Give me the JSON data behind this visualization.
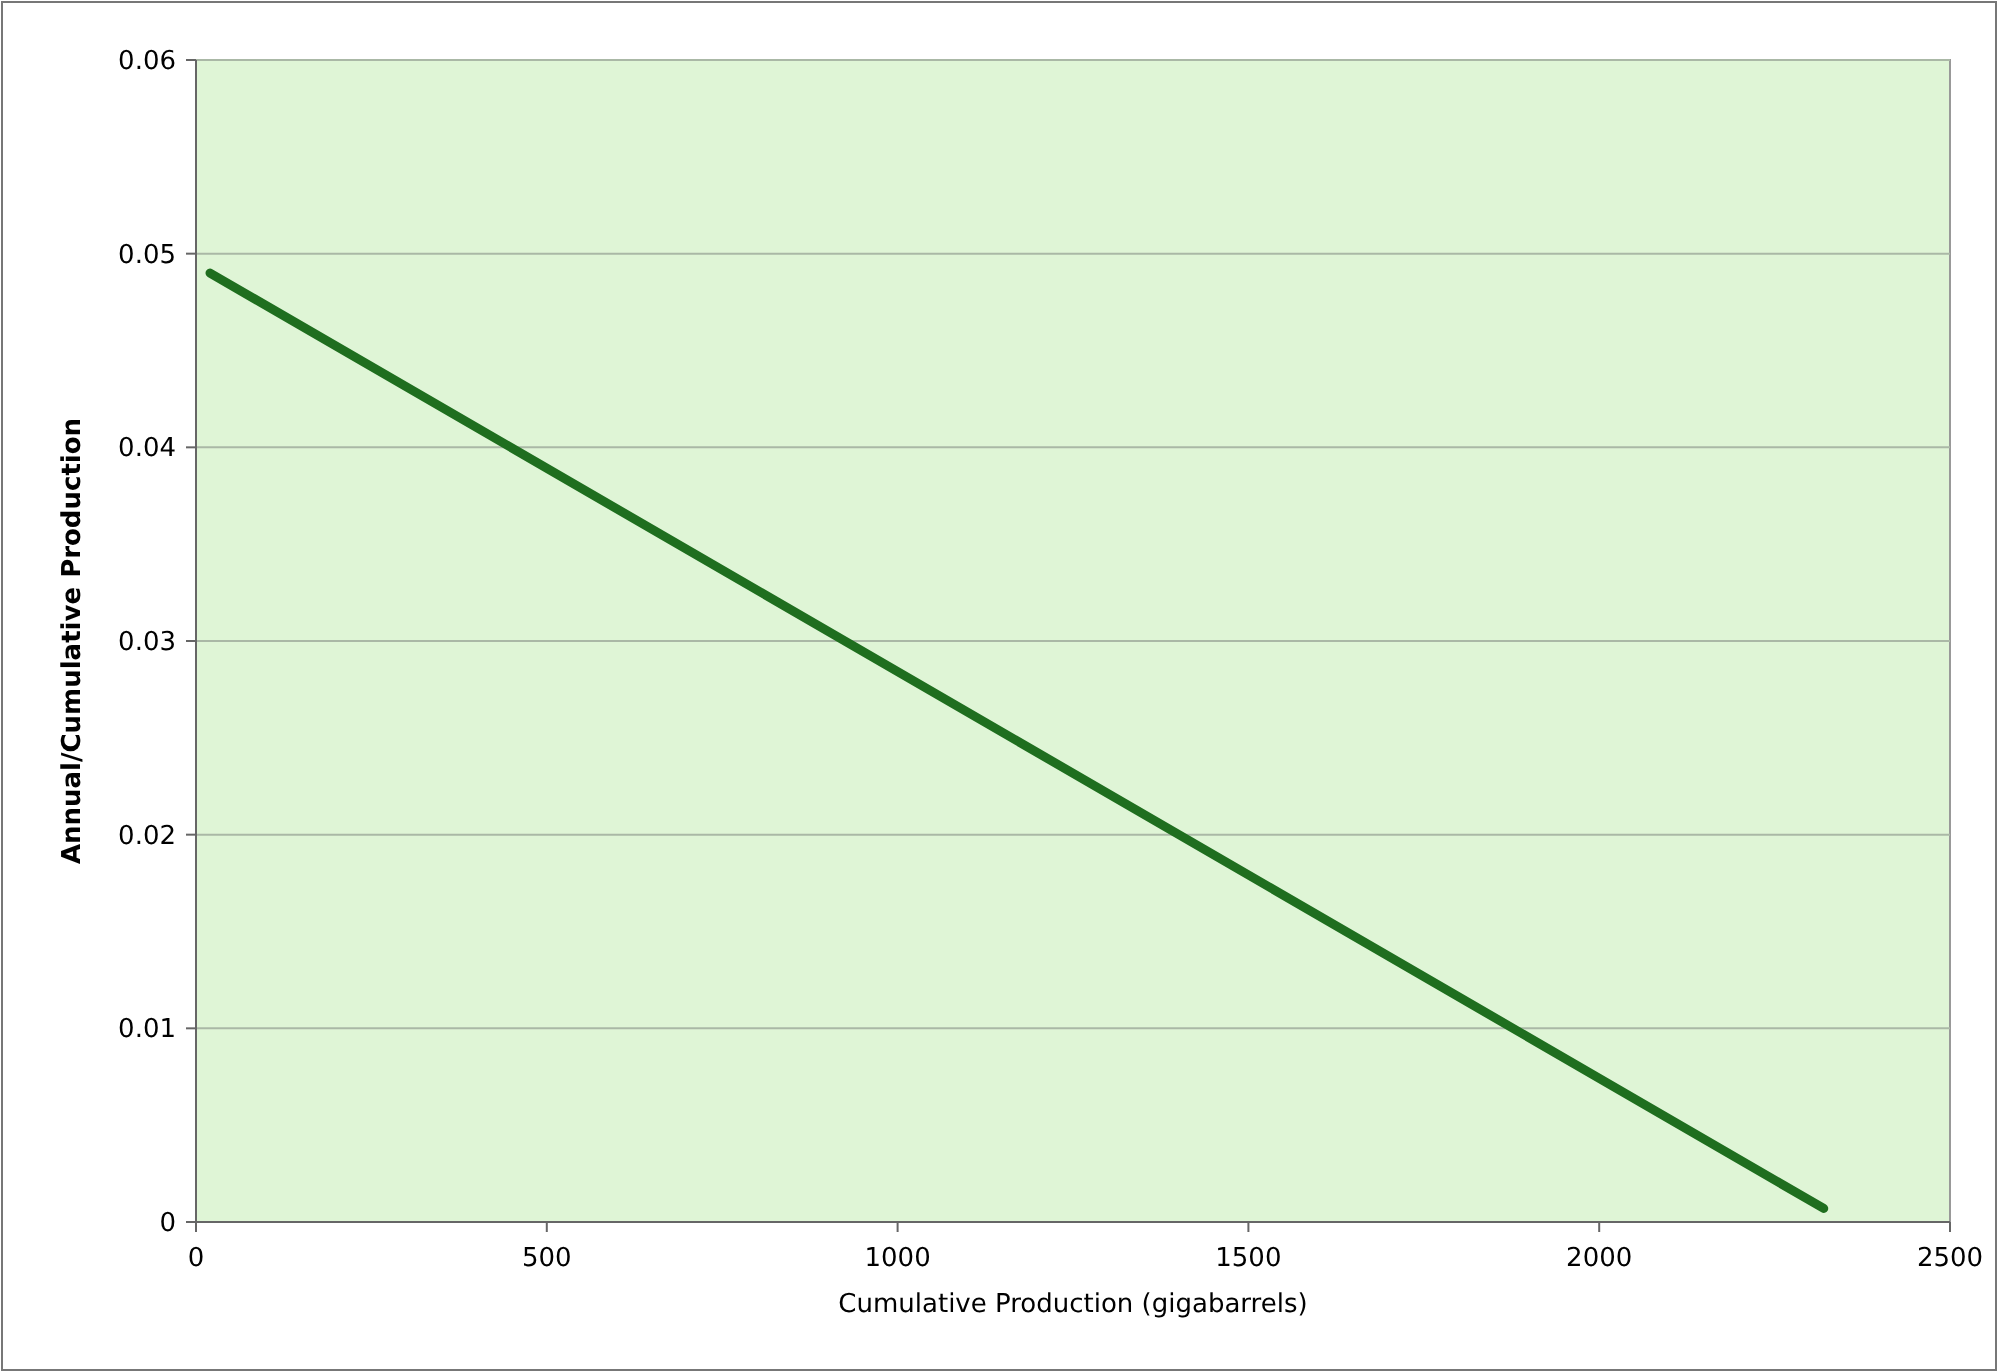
{
  "chart_data": {
    "type": "line",
    "xlabel": "Cumulative Production (gigabarrels)",
    "ylabel": "Annual/Cumulative Production",
    "x": [
      20,
      2320
    ],
    "series": [
      {
        "color": "#1f6e1f",
        "values": [
          0.049,
          0.0007
        ]
      }
    ],
    "xlim": [
      0,
      2500
    ],
    "xticks": [
      0,
      500,
      1000,
      1500,
      2000,
      2500
    ],
    "ylim": [
      0,
      0.06
    ],
    "yticks": [
      0,
      0.01,
      0.02,
      0.03,
      0.04,
      0.05,
      0.06
    ],
    "grid": "y",
    "marker": "none",
    "line_style": "solid"
  }
}
